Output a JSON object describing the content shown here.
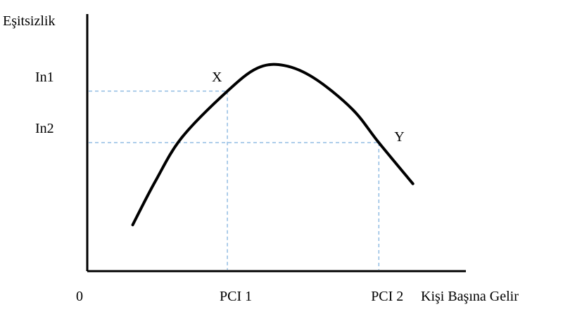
{
  "chart_data": {
    "type": "line",
    "title": "",
    "ylabel": "Eşitsizlik",
    "xlabel": "Kişi Başına Gelir",
    "origin_label": "0",
    "y_ticks": [
      {
        "label": "In1",
        "value": 0.7
      },
      {
        "label": "In2",
        "value": 0.5
      }
    ],
    "x_ticks": [
      {
        "label": "PCI 1",
        "value": 0.37
      },
      {
        "label": "PCI 2",
        "value": 0.77
      }
    ],
    "points": [
      {
        "label": "X",
        "x": 0.37,
        "y": 0.7
      },
      {
        "label": "Y",
        "x": 0.77,
        "y": 0.5
      }
    ],
    "curve": {
      "x": [
        0.12,
        0.18,
        0.25,
        0.37,
        0.45,
        0.52,
        0.6,
        0.7,
        0.77,
        0.86
      ],
      "y": [
        0.18,
        0.35,
        0.52,
        0.7,
        0.79,
        0.8,
        0.75,
        0.63,
        0.5,
        0.34
      ]
    },
    "xlim": [
      0,
      1
    ],
    "ylim": [
      0,
      1
    ],
    "grid": false
  }
}
